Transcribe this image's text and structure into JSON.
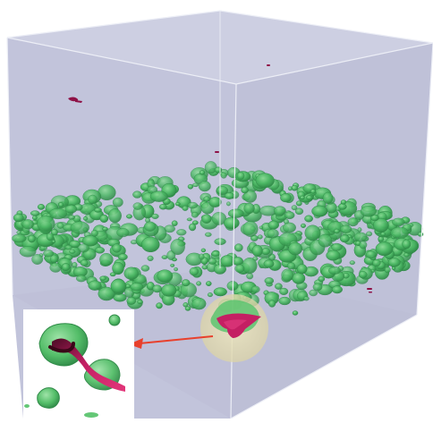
{
  "figure": {
    "kind": "3d-volume-render",
    "colors": {
      "background": "#ffffff",
      "box_fill": "#c3c5dc",
      "box_edge": "#e4e6f1",
      "blob_fill": "#3fa85a",
      "blob_light": "#7fd28c",
      "blob_dark": "#2d7f43",
      "highlight_fill": "#c21f63",
      "highlight_dark": "#5a0d2a",
      "magnifier": "#e2dcb0",
      "arrow": "#e8402c"
    },
    "icons": [
      "magnifier-circle",
      "callout-arrow",
      "zoom-inset"
    ]
  }
}
